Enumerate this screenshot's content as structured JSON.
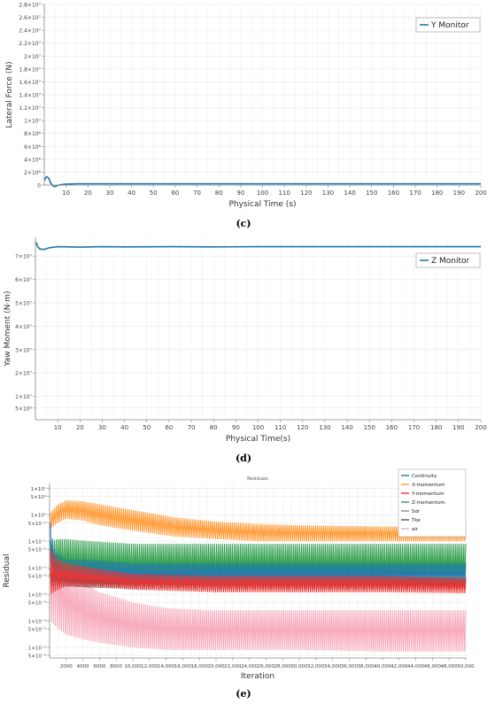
{
  "chart_data": [
    {
      "type": "line",
      "caption": "(c)",
      "xlabel": "Physical Time (s)",
      "ylabel": "Lateral Force (N)",
      "xlim": [
        0,
        200
      ],
      "ylim": [
        0,
        28000000
      ],
      "x_ticks": [
        10,
        20,
        30,
        40,
        50,
        60,
        70,
        80,
        90,
        100,
        110,
        120,
        130,
        140,
        150,
        160,
        170,
        180,
        190,
        200
      ],
      "y_ticks": [
        {
          "v": 0,
          "label": "0"
        },
        {
          "v": 2000000,
          "label": "2×10⁶"
        },
        {
          "v": 4000000,
          "label": "4×10⁶"
        },
        {
          "v": 6000000,
          "label": "6×10⁶"
        },
        {
          "v": 8000000,
          "label": "8×10⁶"
        },
        {
          "v": 10000000,
          "label": "1×10⁷"
        },
        {
          "v": 12000000,
          "label": "1.2×10⁷"
        },
        {
          "v": 14000000,
          "label": "1.4×10⁷"
        },
        {
          "v": 16000000,
          "label": "1.6×10⁷"
        },
        {
          "v": 18000000,
          "label": "1.8×10⁷"
        },
        {
          "v": 20000000,
          "label": "2×10⁷"
        },
        {
          "v": 22000000,
          "label": "2.2×10⁷"
        },
        {
          "v": 24000000,
          "label": "2.4×10⁷"
        },
        {
          "v": 26000000,
          "label": "2.6×10⁷"
        },
        {
          "v": 28000000,
          "label": "2.8×10⁷"
        }
      ],
      "grid": true,
      "legend_position": "top-right",
      "series": [
        {
          "name": "Y Monitor",
          "color": "#1f77a8",
          "x": [
            0,
            1,
            2,
            3,
            4,
            5,
            6,
            8,
            10,
            15,
            20,
            30,
            50,
            100,
            150,
            200
          ],
          "y": [
            700000,
            1300000,
            1100000,
            300000,
            -150000,
            -250000,
            -50000,
            80000,
            150000,
            200000,
            200000,
            200000,
            200000,
            200000,
            200000,
            200000
          ]
        }
      ]
    },
    {
      "type": "line",
      "caption": "(d)",
      "xlabel": "Physical Time(s)",
      "ylabel": "Yaw Moment (N·m)",
      "xlim": [
        0,
        200
      ],
      "ylim": [
        0,
        78000000
      ],
      "x_ticks": [
        10,
        20,
        30,
        40,
        50,
        60,
        70,
        80,
        90,
        100,
        110,
        120,
        130,
        140,
        150,
        160,
        170,
        180,
        190,
        200
      ],
      "y_ticks": [
        {
          "v": 5000000,
          "label": "5×10⁶"
        },
        {
          "v": 10000000,
          "label": "1×10⁷"
        },
        {
          "v": 20000000,
          "label": "2×10⁷"
        },
        {
          "v": 30000000,
          "label": "3×10⁷"
        },
        {
          "v": 40000000,
          "label": "4×10⁷"
        },
        {
          "v": 50000000,
          "label": "5×10⁷"
        },
        {
          "v": 60000000,
          "label": "6×10⁷"
        },
        {
          "v": 70000000,
          "label": "7×10⁷"
        }
      ],
      "grid": true,
      "legend_position": "top-right",
      "series": [
        {
          "name": "Z Monitor",
          "color": "#1f77a8",
          "x": [
            0,
            0.5,
            1,
            2,
            4,
            6,
            10,
            20,
            30,
            40,
            60,
            80,
            100,
            150,
            200
          ],
          "y": [
            75800000,
            75500000,
            74000000,
            73000000,
            72800000,
            73500000,
            74000000,
            73800000,
            74000000,
            73900000,
            74000000,
            73900000,
            74000000,
            74000000,
            74000000
          ]
        }
      ]
    },
    {
      "type": "line",
      "caption": "(e)",
      "title": "Residuals",
      "xlabel": "Iteration",
      "ylabel": "Residual",
      "xlim": [
        0,
        50000
      ],
      "ylog": true,
      "x_ticks": [
        {
          "v": 2000,
          "label": "2000"
        },
        {
          "v": 4000,
          "label": "4000"
        },
        {
          "v": 6000,
          "label": "6000"
        },
        {
          "v": 8000,
          "label": "8000"
        },
        {
          "v": 10000,
          "label": "10,000"
        },
        {
          "v": 12000,
          "label": "12,000"
        },
        {
          "v": 14000,
          "label": "14,000"
        },
        {
          "v": 16000,
          "label": "16,000"
        },
        {
          "v": 18000,
          "label": "18,000"
        },
        {
          "v": 20000,
          "label": "20,000"
        },
        {
          "v": 22000,
          "label": "22,000"
        },
        {
          "v": 24000,
          "label": "24,000"
        },
        {
          "v": 26000,
          "label": "26,000"
        },
        {
          "v": 28000,
          "label": "28,000"
        },
        {
          "v": 30000,
          "label": "30,000"
        },
        {
          "v": 32000,
          "label": "32,000"
        },
        {
          "v": 34000,
          "label": "34,000"
        },
        {
          "v": 36000,
          "label": "36,000"
        },
        {
          "v": 38000,
          "label": "38,000"
        },
        {
          "v": 40000,
          "label": "40,000"
        },
        {
          "v": 42000,
          "label": "42,000"
        },
        {
          "v": 44000,
          "label": "44,000"
        },
        {
          "v": 46000,
          "label": "46,000"
        },
        {
          "v": 48000,
          "label": "48,000"
        },
        {
          "v": 50000,
          "label": "50,000"
        }
      ],
      "y_ticks": [
        {
          "v": 10,
          "label": "1×10¹"
        },
        {
          "v": 5,
          "label": "5×10⁰"
        },
        {
          "v": 1,
          "label": "1×10⁰"
        },
        {
          "v": 0.5,
          "label": "5×10⁻¹"
        },
        {
          "v": 0.1,
          "label": "1×10⁻¹"
        },
        {
          "v": 0.05,
          "label": "5×10⁻²"
        },
        {
          "v": 0.01,
          "label": "1×10⁻²"
        },
        {
          "v": 0.005,
          "label": "5×10⁻³"
        },
        {
          "v": 0.001,
          "label": "1×10⁻³"
        },
        {
          "v": 0.0005,
          "label": "5×10⁻⁴"
        },
        {
          "v": 0.0001,
          "label": "1×10⁻⁴"
        },
        {
          "v": 5e-05,
          "label": "5×10⁻⁵"
        },
        {
          "v": 1e-05,
          "label": "1×10⁻⁵"
        },
        {
          "v": 5e-06,
          "label": "5×10⁻⁶"
        }
      ],
      "ylim": [
        4e-06,
        15
      ],
      "grid": true,
      "legend_position": "top-right",
      "series": [
        {
          "name": "Continuity",
          "color": "#1f77b4",
          "x": [
            100,
            500,
            1000,
            2000,
            5000,
            10000,
            20000,
            30000,
            40000,
            50000
          ],
          "y_low": [
            0.02,
            0.005,
            0.003,
            0.002,
            0.002,
            0.002,
            0.002,
            0.002,
            0.002,
            0.002
          ],
          "y_high": [
            0.5,
            0.05,
            0.03,
            0.02,
            0.02,
            0.015,
            0.015,
            0.015,
            0.015,
            0.015
          ]
        },
        {
          "name": "X-momentum",
          "color": "#ff9933",
          "x": [
            100,
            1000,
            2000,
            4000,
            6000,
            10000,
            15000,
            20000,
            25000,
            30000,
            35000,
            40000,
            45000,
            50000
          ],
          "y_low": [
            0.3,
            0.5,
            0.7,
            0.6,
            0.4,
            0.25,
            0.15,
            0.12,
            0.1,
            0.1,
            0.1,
            0.1,
            0.1,
            0.1
          ],
          "y_high": [
            1.2,
            2.5,
            3.5,
            3.2,
            2.5,
            1.5,
            0.8,
            0.55,
            0.45,
            0.4,
            0.38,
            0.36,
            0.36,
            0.35
          ]
        },
        {
          "name": "Y-momentum",
          "color": "#ee3333",
          "x": [
            100,
            1000,
            2000,
            5000,
            10000,
            20000,
            30000,
            40000,
            50000
          ],
          "y_low": [
            0.001,
            0.0015,
            0.002,
            0.002,
            0.0015,
            0.0012,
            0.0012,
            0.0012,
            0.0011
          ],
          "y_high": [
            0.05,
            0.02,
            0.015,
            0.01,
            0.006,
            0.005,
            0.005,
            0.005,
            0.004
          ]
        },
        {
          "name": "Z-momentum",
          "color": "#2a9d4a",
          "x": [
            100,
            1000,
            2000,
            5000,
            10000,
            20000,
            30000,
            40000,
            50000
          ],
          "y_low": [
            0.01,
            0.006,
            0.004,
            0.003,
            0.003,
            0.003,
            0.003,
            0.003,
            0.003
          ],
          "y_high": [
            0.1,
            0.12,
            0.12,
            0.1,
            0.08,
            0.08,
            0.08,
            0.08,
            0.08
          ]
        },
        {
          "name": "Sdr",
          "color": "#888888",
          "x": [
            100,
            1000,
            2000,
            5000,
            10000,
            20000,
            50000
          ],
          "y_low": [
            0.002,
            0.003,
            0.002,
            0.0018,
            0.0016,
            0.0015,
            0.0015
          ],
          "y_high": [
            0.01,
            0.01,
            0.008,
            0.006,
            0.005,
            0.005,
            0.005
          ]
        },
        {
          "name": "Tke",
          "color": "#555555",
          "x": [
            100,
            1000,
            2000,
            5000,
            10000,
            20000,
            50000
          ],
          "y_low": [
            0.002,
            0.002,
            0.002,
            0.0018,
            0.0016,
            0.0015,
            0.0015
          ],
          "y_high": [
            0.006,
            0.006,
            0.005,
            0.004,
            0.004,
            0.004,
            0.004
          ]
        },
        {
          "name": "air",
          "color": "#f7a7b8",
          "x": [
            100,
            1000,
            2000,
            4000,
            6000,
            8000,
            10000,
            14000,
            20000,
            30000,
            40000,
            50000
          ],
          "y_low": [
            0.0001,
            5e-05,
            3e-05,
            2e-05,
            1.5e-05,
            1.2e-05,
            1e-05,
            8e-06,
            8e-06,
            8e-06,
            7e-06,
            7e-06
          ],
          "y_high": [
            0.08,
            0.05,
            0.01,
            0.003,
            0.0012,
            0.0008,
            0.0005,
            0.0003,
            0.00025,
            0.00025,
            0.00025,
            0.00025
          ]
        }
      ]
    }
  ]
}
